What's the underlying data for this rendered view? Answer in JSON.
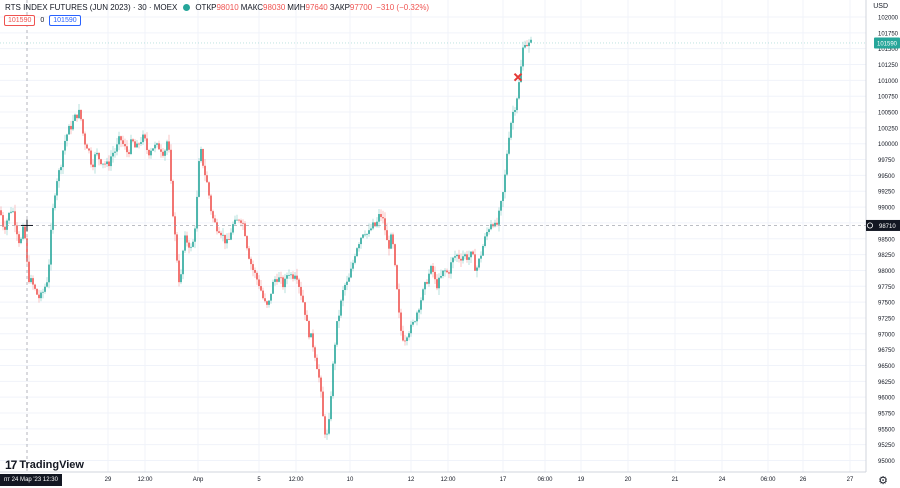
{
  "legend": {
    "symbol": "RTS INDEX FUTURES (JUN 2023) · 30 · MOEX",
    "open_label": "ОТКР",
    "open_value": "98010",
    "high_label": "МАКС",
    "high_value": "98030",
    "low_label": "МИН",
    "low_value": "97640",
    "close_label": "ЗАКР",
    "close_value": "97700",
    "change": "−310 (−0.32%)"
  },
  "badges": {
    "sell": "101590",
    "spread": "0",
    "buy": "101590"
  },
  "currency": "USD",
  "logo": "TradingView",
  "crosshair": {
    "time_label": "пт 24 Мар '23   12:30",
    "price_label": "98710"
  },
  "last_price_label": "101590",
  "colors": {
    "up": "#26a69a",
    "down": "#ef5350",
    "last_price": "#26a69a"
  },
  "chart_data": {
    "type": "candlestick",
    "title": "RTS INDEX FUTURES (JUN 2023) · 30 · MOEX",
    "y_axis_ticks": [
      95000,
      95250,
      95500,
      95750,
      96000,
      96250,
      96500,
      96750,
      97000,
      97250,
      97500,
      97750,
      98000,
      98250,
      98500,
      98750,
      99000,
      99250,
      99500,
      99750,
      100000,
      100250,
      100500,
      100750,
      101000,
      101250,
      101500,
      101750,
      102000
    ],
    "ylim": [
      94950,
      102150
    ],
    "x_axis_ticks": [
      {
        "label": "29",
        "x": 108
      },
      {
        "label": "12:00",
        "x": 145
      },
      {
        "label": "Апр",
        "x": 198
      },
      {
        "label": "5",
        "x": 259
      },
      {
        "label": "12:00",
        "x": 296
      },
      {
        "label": "10",
        "x": 350
      },
      {
        "label": "12",
        "x": 411
      },
      {
        "label": "12:00",
        "x": 448
      },
      {
        "label": "17",
        "x": 503
      },
      {
        "label": "06:00",
        "x": 545
      },
      {
        "label": "19",
        "x": 581
      },
      {
        "label": "20",
        "x": 628
      },
      {
        "label": "21",
        "x": 675
      },
      {
        "label": "24",
        "x": 722
      },
      {
        "label": "06:00",
        "x": 768
      },
      {
        "label": "26",
        "x": 803
      },
      {
        "label": "27",
        "x": 850
      }
    ],
    "close_path": [
      [
        0,
        98950
      ],
      [
        4,
        98650
      ],
      [
        8,
        98850
      ],
      [
        12,
        99000
      ],
      [
        16,
        98700
      ],
      [
        20,
        98400
      ],
      [
        24,
        98700
      ],
      [
        28,
        97900
      ],
      [
        32,
        97800
      ],
      [
        36,
        97650
      ],
      [
        40,
        97550
      ],
      [
        44,
        97700
      ],
      [
        48,
        97900
      ],
      [
        52,
        98800
      ],
      [
        56,
        99400
      ],
      [
        60,
        99600
      ],
      [
        64,
        100000
      ],
      [
        68,
        100200
      ],
      [
        72,
        100300
      ],
      [
        76,
        100450
      ],
      [
        80,
        100500
      ],
      [
        84,
        100050
      ],
      [
        88,
        99950
      ],
      [
        92,
        99650
      ],
      [
        96,
        99850
      ],
      [
        100,
        99750
      ],
      [
        104,
        99700
      ],
      [
        108,
        99650
      ],
      [
        112,
        99850
      ],
      [
        116,
        99900
      ],
      [
        120,
        100100
      ],
      [
        124,
        99950
      ],
      [
        128,
        99850
      ],
      [
        132,
        100050
      ],
      [
        136,
        99900
      ],
      [
        140,
        100050
      ],
      [
        144,
        100100
      ],
      [
        148,
        99850
      ],
      [
        152,
        99950
      ],
      [
        156,
        99950
      ],
      [
        160,
        99950
      ],
      [
        164,
        99850
      ],
      [
        168,
        100100
      ],
      [
        172,
        99100
      ],
      [
        176,
        98350
      ],
      [
        180,
        97700
      ],
      [
        184,
        98500
      ],
      [
        188,
        98450
      ],
      [
        192,
        98300
      ],
      [
        196,
        98850
      ],
      [
        200,
        99950
      ],
      [
        204,
        99600
      ],
      [
        208,
        99300
      ],
      [
        212,
        98850
      ],
      [
        216,
        98700
      ],
      [
        220,
        98650
      ],
      [
        224,
        98500
      ],
      [
        228,
        98400
      ],
      [
        232,
        98700
      ],
      [
        236,
        98750
      ],
      [
        240,
        98850
      ],
      [
        244,
        98700
      ],
      [
        248,
        98300
      ],
      [
        252,
        98050
      ],
      [
        256,
        97900
      ],
      [
        260,
        97750
      ],
      [
        264,
        97500
      ],
      [
        268,
        97400
      ],
      [
        272,
        97750
      ],
      [
        276,
        97900
      ],
      [
        280,
        97850
      ],
      [
        284,
        97750
      ],
      [
        288,
        98000
      ],
      [
        292,
        97900
      ],
      [
        296,
        98000
      ],
      [
        300,
        97700
      ],
      [
        304,
        97450
      ],
      [
        308,
        97050
      ],
      [
        312,
        96900
      ],
      [
        316,
        96600
      ],
      [
        320,
        96200
      ],
      [
        324,
        95500
      ],
      [
        328,
        95350
      ],
      [
        332,
        96300
      ],
      [
        336,
        97050
      ],
      [
        340,
        97400
      ],
      [
        344,
        97750
      ],
      [
        348,
        97800
      ],
      [
        352,
        98050
      ],
      [
        356,
        98350
      ],
      [
        360,
        98500
      ],
      [
        364,
        98650
      ],
      [
        368,
        98550
      ],
      [
        372,
        98700
      ],
      [
        376,
        98700
      ],
      [
        380,
        98900
      ],
      [
        384,
        98750
      ],
      [
        388,
        98350
      ],
      [
        392,
        98550
      ],
      [
        396,
        97850
      ],
      [
        400,
        97100
      ],
      [
        404,
        96900
      ],
      [
        408,
        97050
      ],
      [
        412,
        97100
      ],
      [
        416,
        97300
      ],
      [
        420,
        97500
      ],
      [
        424,
        97700
      ],
      [
        428,
        97900
      ],
      [
        432,
        98050
      ],
      [
        436,
        97750
      ],
      [
        440,
        97850
      ],
      [
        444,
        98000
      ],
      [
        448,
        97950
      ],
      [
        452,
        98150
      ],
      [
        456,
        98250
      ],
      [
        460,
        98200
      ],
      [
        464,
        98250
      ],
      [
        468,
        98200
      ],
      [
        472,
        98250
      ],
      [
        476,
        98000
      ],
      [
        480,
        98200
      ],
      [
        484,
        98450
      ],
      [
        488,
        98650
      ],
      [
        492,
        98800
      ],
      [
        496,
        98650
      ],
      [
        500,
        98950
      ],
      [
        504,
        99300
      ],
      [
        508,
        100050
      ],
      [
        512,
        100450
      ],
      [
        516,
        100650
      ],
      [
        520,
        101050
      ],
      [
        524,
        101650
      ],
      [
        528,
        101550
      ],
      [
        532,
        101600
      ]
    ],
    "annotation": {
      "type": "cross",
      "price": 101050,
      "x": 518
    }
  }
}
